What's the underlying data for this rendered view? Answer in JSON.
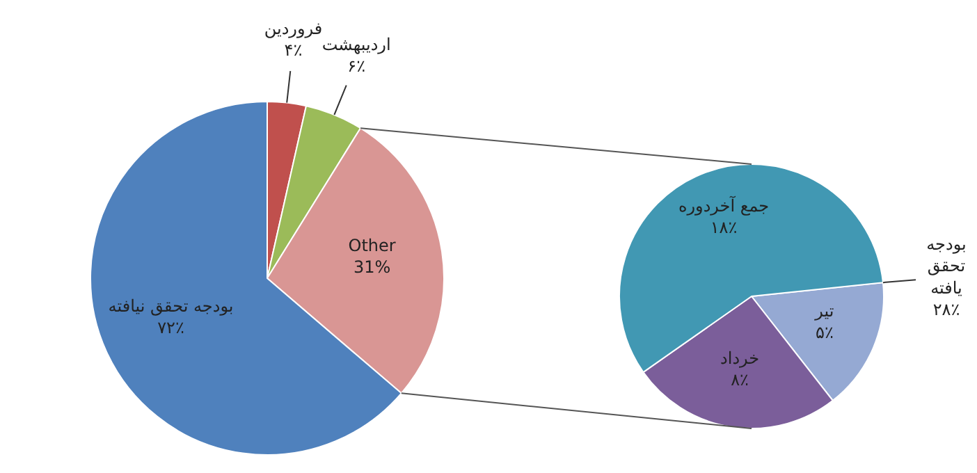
{
  "chart_data": [
    {
      "type": "pie",
      "categories": [
        "فروردین",
        "اردیبهشت",
        "Other",
        "بودجه تحقق نیافته"
      ],
      "values": [
        4,
        6,
        31,
        72
      ],
      "value_labels": [
        "۴٪",
        "۶٪",
        "31%",
        "۷۲٪"
      ],
      "colors": [
        "#c0504d",
        "#9bbb59",
        "#d99694",
        "#4f81bd"
      ]
    },
    {
      "type": "pie",
      "categories": [
        "تیر",
        "خرداد",
        "جمع آخردوره"
      ],
      "values": [
        5,
        8,
        18
      ],
      "value_labels": [
        "۵٪",
        "۸٪",
        "۱۸٪"
      ],
      "colors": [
        "#95a9d3",
        "#7b5e9a",
        "#4198b3"
      ],
      "annotations": [
        "بودجه تحقق یافته ۲۸٪"
      ]
    }
  ]
}
